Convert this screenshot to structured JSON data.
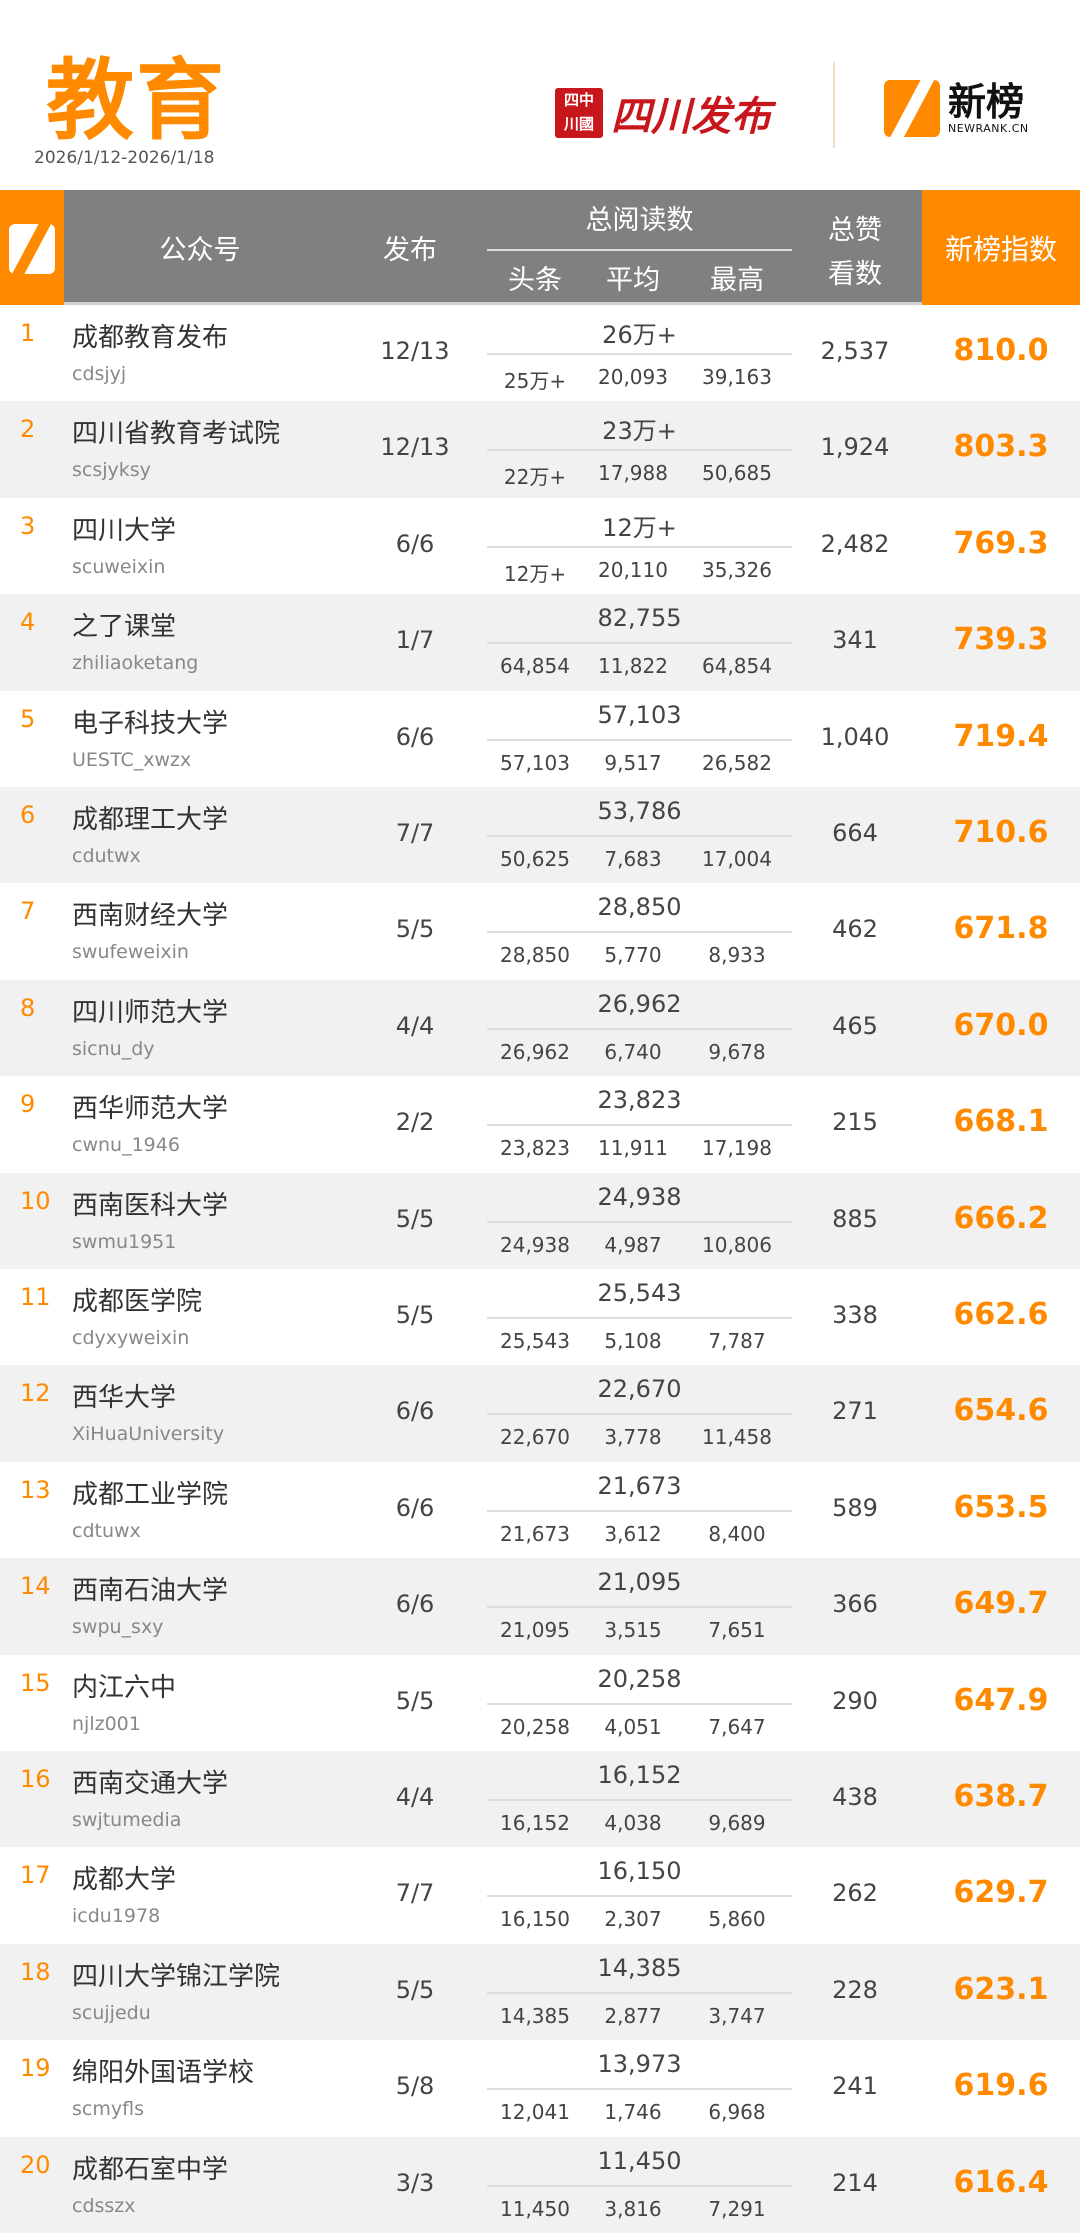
{
  "header": {
    "title": "教育",
    "date_range": "2026/1/12-2026/1/18",
    "partner_logo": {
      "seal": "四川中國",
      "text": "四川发布"
    },
    "brand_logo": {
      "cn": "新榜",
      "en": "NEWRANK.CN"
    }
  },
  "colors": {
    "accent": "#ff8a00",
    "header_bg": "#808080",
    "alt_row": "#f1f1f1",
    "partner_red": "#c8161d"
  },
  "columns": {
    "account": "公众号",
    "publish": "发布",
    "total_reads": "总阅读数",
    "headline": "头条",
    "average": "平均",
    "max": "最高",
    "likes_line1": "总赞",
    "likes_line2": "看数",
    "index": "新榜指数"
  },
  "rows": [
    {
      "rank": "1",
      "name": "成都教育发布",
      "id": "cdsjyj",
      "publish": "12/13",
      "total": "26万+",
      "headline": "25万+",
      "average": "20,093",
      "max": "39,163",
      "likes": "2,537",
      "index": "810.0"
    },
    {
      "rank": "2",
      "name": "四川省教育考试院",
      "id": "scsjyksy",
      "publish": "12/13",
      "total": "23万+",
      "headline": "22万+",
      "average": "17,988",
      "max": "50,685",
      "likes": "1,924",
      "index": "803.3"
    },
    {
      "rank": "3",
      "name": "四川大学",
      "id": "scuweixin",
      "publish": "6/6",
      "total": "12万+",
      "headline": "12万+",
      "average": "20,110",
      "max": "35,326",
      "likes": "2,482",
      "index": "769.3"
    },
    {
      "rank": "4",
      "name": "之了课堂",
      "id": "zhiliaoketang",
      "publish": "1/7",
      "total": "82,755",
      "headline": "64,854",
      "average": "11,822",
      "max": "64,854",
      "likes": "341",
      "index": "739.3"
    },
    {
      "rank": "5",
      "name": "电子科技大学",
      "id": "UESTC_xwzx",
      "publish": "6/6",
      "total": "57,103",
      "headline": "57,103",
      "average": "9,517",
      "max": "26,582",
      "likes": "1,040",
      "index": "719.4"
    },
    {
      "rank": "6",
      "name": "成都理工大学",
      "id": "cdutwx",
      "publish": "7/7",
      "total": "53,786",
      "headline": "50,625",
      "average": "7,683",
      "max": "17,004",
      "likes": "664",
      "index": "710.6"
    },
    {
      "rank": "7",
      "name": "西南财经大学",
      "id": "swufeweixin",
      "publish": "5/5",
      "total": "28,850",
      "headline": "28,850",
      "average": "5,770",
      "max": "8,933",
      "likes": "462",
      "index": "671.8"
    },
    {
      "rank": "8",
      "name": "四川师范大学",
      "id": "sicnu_dy",
      "publish": "4/4",
      "total": "26,962",
      "headline": "26,962",
      "average": "6,740",
      "max": "9,678",
      "likes": "465",
      "index": "670.0"
    },
    {
      "rank": "9",
      "name": "西华师范大学",
      "id": "cwnu_1946",
      "publish": "2/2",
      "total": "23,823",
      "headline": "23,823",
      "average": "11,911",
      "max": "17,198",
      "likes": "215",
      "index": "668.1"
    },
    {
      "rank": "10",
      "name": "西南医科大学",
      "id": "swmu1951",
      "publish": "5/5",
      "total": "24,938",
      "headline": "24,938",
      "average": "4,987",
      "max": "10,806",
      "likes": "885",
      "index": "666.2"
    },
    {
      "rank": "11",
      "name": "成都医学院",
      "id": "cdyxyweixin",
      "publish": "5/5",
      "total": "25,543",
      "headline": "25,543",
      "average": "5,108",
      "max": "7,787",
      "likes": "338",
      "index": "662.6"
    },
    {
      "rank": "12",
      "name": "西华大学",
      "id": "XiHuaUniversity",
      "publish": "6/6",
      "total": "22,670",
      "headline": "22,670",
      "average": "3,778",
      "max": "11,458",
      "likes": "271",
      "index": "654.6"
    },
    {
      "rank": "13",
      "name": "成都工业学院",
      "id": "cdtuwx",
      "publish": "6/6",
      "total": "21,673",
      "headline": "21,673",
      "average": "3,612",
      "max": "8,400",
      "likes": "589",
      "index": "653.5"
    },
    {
      "rank": "14",
      "name": "西南石油大学",
      "id": "swpu_sxy",
      "publish": "6/6",
      "total": "21,095",
      "headline": "21,095",
      "average": "3,515",
      "max": "7,651",
      "likes": "366",
      "index": "649.7"
    },
    {
      "rank": "15",
      "name": "内江六中",
      "id": "njlz001",
      "publish": "5/5",
      "total": "20,258",
      "headline": "20,258",
      "average": "4,051",
      "max": "7,647",
      "likes": "290",
      "index": "647.9"
    },
    {
      "rank": "16",
      "name": "西南交通大学",
      "id": "swjtumedia",
      "publish": "4/4",
      "total": "16,152",
      "headline": "16,152",
      "average": "4,038",
      "max": "9,689",
      "likes": "438",
      "index": "638.7"
    },
    {
      "rank": "17",
      "name": "成都大学",
      "id": "icdu1978",
      "publish": "7/7",
      "total": "16,150",
      "headline": "16,150",
      "average": "2,307",
      "max": "5,860",
      "likes": "262",
      "index": "629.7"
    },
    {
      "rank": "18",
      "name": "四川大学锦江学院",
      "id": "scujjedu",
      "publish": "5/5",
      "total": "14,385",
      "headline": "14,385",
      "average": "2,877",
      "max": "3,747",
      "likes": "228",
      "index": "623.1"
    },
    {
      "rank": "19",
      "name": "绵阳外国语学校",
      "id": "scmyfls",
      "publish": "5/8",
      "total": "13,973",
      "headline": "12,041",
      "average": "1,746",
      "max": "6,968",
      "likes": "241",
      "index": "619.6"
    },
    {
      "rank": "20",
      "name": "成都石室中学",
      "id": "cdsszx",
      "publish": "3/3",
      "total": "11,450",
      "headline": "11,450",
      "average": "3,816",
      "max": "7,291",
      "likes": "214",
      "index": "616.4"
    }
  ]
}
